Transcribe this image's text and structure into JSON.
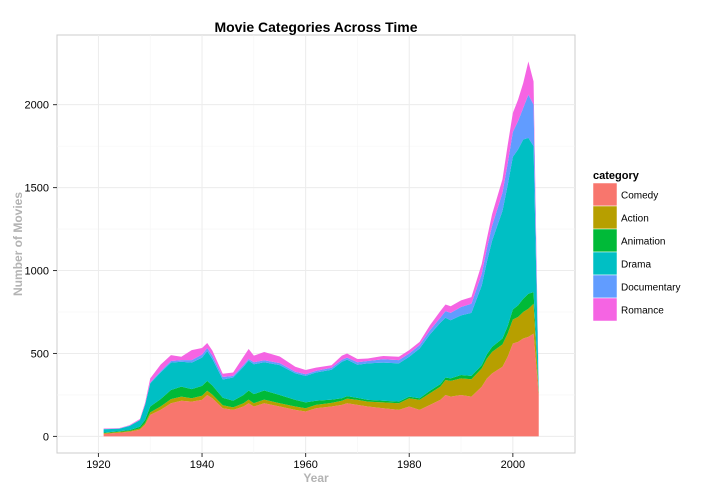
{
  "chart_data": {
    "type": "area",
    "stacked": true,
    "title": "Movie Categories Across Time",
    "xlabel": "Year",
    "ylabel": "Number of Movies",
    "xlim": [
      1912,
      2012
    ],
    "ylim": [
      -100,
      2420
    ],
    "x_ticks": [
      1920,
      1940,
      1960,
      1980,
      2000
    ],
    "y_ticks": [
      0,
      500,
      1000,
      1500,
      2000
    ],
    "grid": true,
    "legend_title": "category",
    "legend_position": "right",
    "x": [
      1921,
      1924,
      1926,
      1928,
      1929,
      1930,
      1932,
      1934,
      1936,
      1938,
      1940,
      1941,
      1942,
      1944,
      1946,
      1948,
      1949,
      1950,
      1952,
      1955,
      1958,
      1960,
      1962,
      1965,
      1967,
      1968,
      1970,
      1972,
      1975,
      1978,
      1980,
      1982,
      1984,
      1986,
      1987,
      1988,
      1990,
      1992,
      1994,
      1995,
      1996,
      1998,
      1999,
      2000,
      2001,
      2002,
      2003,
      2004,
      2005
    ],
    "series": [
      {
        "name": "Comedy",
        "color": "#F8766D",
        "values": [
          15,
          22,
          28,
          40,
          70,
          130,
          160,
          200,
          215,
          210,
          220,
          250,
          230,
          170,
          160,
          180,
          200,
          180,
          200,
          180,
          160,
          150,
          170,
          180,
          190,
          200,
          190,
          180,
          170,
          160,
          180,
          160,
          190,
          220,
          250,
          240,
          250,
          240,
          300,
          350,
          380,
          420,
          480,
          560,
          570,
          590,
          600,
          620,
          250
        ]
      },
      {
        "name": "Action",
        "color": "#B79F00",
        "values": [
          5,
          5,
          5,
          8,
          10,
          15,
          20,
          25,
          25,
          20,
          25,
          25,
          22,
          18,
          15,
          20,
          22,
          20,
          22,
          20,
          20,
          20,
          20,
          22,
          25,
          28,
          30,
          30,
          35,
          40,
          50,
          60,
          70,
          80,
          90,
          95,
          100,
          105,
          110,
          120,
          130,
          135,
          140,
          145,
          150,
          160,
          170,
          180,
          10
        ]
      },
      {
        "name": "Animation",
        "color": "#00BA38",
        "values": [
          3,
          4,
          5,
          10,
          20,
          35,
          45,
          55,
          60,
          55,
          60,
          60,
          55,
          45,
          40,
          50,
          55,
          55,
          55,
          50,
          40,
          35,
          25,
          20,
          15,
          15,
          12,
          10,
          10,
          10,
          10,
          10,
          15,
          15,
          15,
          15,
          20,
          20,
          20,
          25,
          30,
          35,
          45,
          60,
          70,
          80,
          90,
          70,
          5
        ]
      },
      {
        "name": "Drama",
        "color": "#00BFC4",
        "values": [
          20,
          15,
          25,
          40,
          90,
          140,
          160,
          165,
          150,
          160,
          170,
          180,
          160,
          110,
          140,
          170,
          180,
          180,
          170,
          180,
          160,
          160,
          170,
          180,
          220,
          220,
          200,
          220,
          230,
          230,
          240,
          300,
          340,
          370,
          360,
          350,
          360,
          380,
          480,
          560,
          640,
          770,
          850,
          920,
          940,
          960,
          940,
          880,
          10
        ]
      },
      {
        "name": "Documentary",
        "color": "#619CFF",
        "values": [
          2,
          2,
          2,
          2,
          2,
          5,
          8,
          10,
          10,
          15,
          18,
          18,
          20,
          15,
          10,
          10,
          10,
          12,
          12,
          12,
          10,
          10,
          10,
          12,
          12,
          12,
          15,
          15,
          20,
          20,
          20,
          20,
          25,
          30,
          40,
          45,
          50,
          55,
          70,
          80,
          90,
          110,
          130,
          150,
          170,
          190,
          260,
          250,
          10
        ]
      },
      {
        "name": "Romance",
        "color": "#F564E3",
        "values": [
          3,
          2,
          3,
          5,
          10,
          25,
          40,
          35,
          20,
          60,
          40,
          30,
          30,
          20,
          20,
          50,
          60,
          40,
          50,
          40,
          30,
          25,
          20,
          15,
          25,
          25,
          20,
          15,
          20,
          20,
          20,
          20,
          30,
          40,
          40,
          40,
          40,
          40,
          60,
          60,
          70,
          80,
          110,
          115,
          130,
          150,
          200,
          140,
          10
        ]
      }
    ]
  }
}
